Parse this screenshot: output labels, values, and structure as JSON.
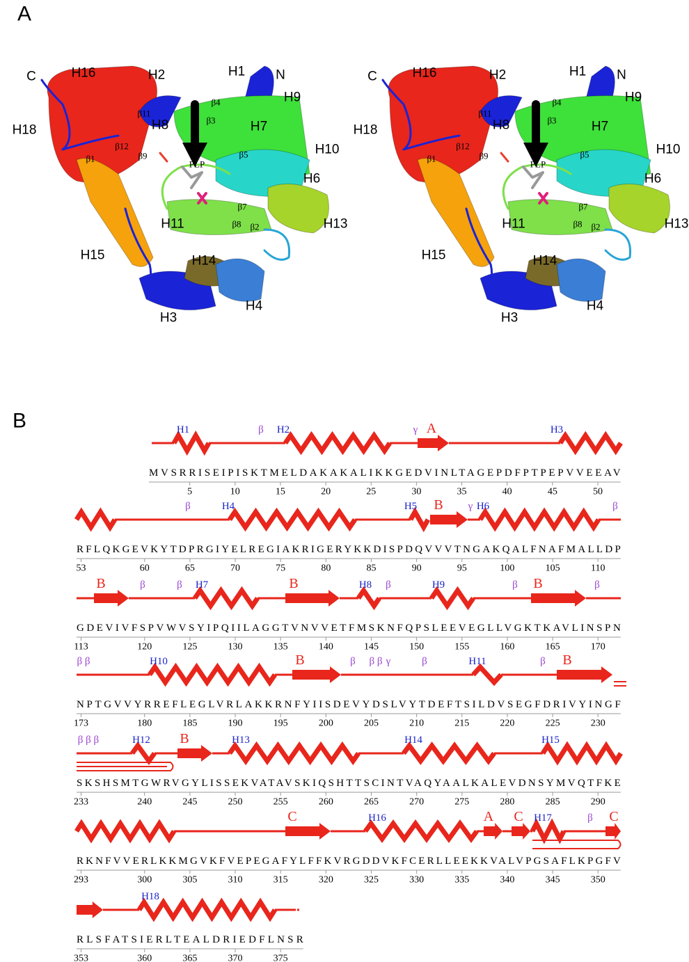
{
  "panel_a": {
    "label": "A",
    "structure_labels": [
      "C",
      "H16",
      "H2",
      "H1",
      "N",
      "H9",
      "H18",
      "β11",
      "H8",
      "β4",
      "β3",
      "H7",
      "β1",
      "β12",
      "β9",
      "PLP",
      "β5",
      "H10",
      "H6",
      "β7",
      "H11",
      "β8",
      "β2",
      "H13",
      "H15",
      "H14",
      "H3",
      "H4"
    ]
  },
  "panel_b": {
    "label": "B",
    "rows": [
      {
        "sequence": "MVSRRISEIPISKTMELDAKAKALIKKGEDVINLTAGEPDFPTPEPVVEEAV",
        "ticks": [
          5,
          10,
          15,
          20,
          25,
          30,
          35,
          40,
          45,
          50
        ],
        "annotations": [
          "H1",
          "β",
          "H2",
          "γ",
          "A",
          "H3"
        ]
      },
      {
        "sequence": "RFLQKGEVKYTDPRGIYELREGIAKRIGERYKKDISPDQVVVTNGAKQALFNAFMALLDP",
        "ticks": [
          53,
          60,
          65,
          70,
          75,
          80,
          85,
          90,
          95,
          100,
          105,
          110
        ],
        "annotations": [
          "β",
          "H4",
          "H5",
          "B",
          "γ",
          "H6",
          "β"
        ]
      },
      {
        "sequence": "GDEVIVFSPVWVSYIPQIILAGGTVNVVETFMSKNFQPSLEEVEGLLVGKTKAVLINSPN",
        "ticks": [
          113,
          120,
          125,
          130,
          135,
          140,
          145,
          150,
          155,
          160,
          165,
          170
        ],
        "annotations": [
          "B",
          "β",
          "β",
          "H7",
          "B",
          "H8",
          "β",
          "H9",
          "β",
          "B",
          "β"
        ]
      },
      {
        "sequence": "NPTGVVYRREFLEGLVRLAKKRNFYIISDEVYDSLVYTDEFTSILDVSEGFDRIVYINGF",
        "ticks": [
          173,
          180,
          185,
          190,
          195,
          200,
          205,
          210,
          215,
          220,
          225,
          230
        ],
        "annotations": [
          "β β",
          "H10",
          "B",
          "β",
          "β β",
          "γ",
          "β",
          "H11",
          "β",
          "B"
        ]
      },
      {
        "sequence": "SKSHSMTGWRVGYLISSEKVATAVSKIQSHTTSCINTVAQYAALKALEVDNSYMVQTFKE",
        "ticks": [
          233,
          240,
          245,
          250,
          255,
          260,
          265,
          270,
          275,
          280,
          285,
          290
        ],
        "annotations": [
          "β β β",
          "H12",
          "B",
          "H13",
          "H14",
          "H15"
        ]
      },
      {
        "sequence": "RKNFVVERLKKMGVKFVEPEGAFYLFFKVRGDDVKFCERLLEEKKVALVPGSAFLKPGFV",
        "ticks": [
          293,
          300,
          305,
          310,
          315,
          320,
          325,
          330,
          335,
          340,
          345,
          350
        ],
        "annotations": [
          "C",
          "H16",
          "A",
          "C",
          "H17",
          "β",
          "C"
        ]
      },
      {
        "sequence": "RLSFATSIERLTEALDRIEDFLNSR",
        "ticks": [
          353,
          360,
          365,
          370,
          375
        ],
        "annotations": [
          "H18"
        ]
      }
    ]
  }
}
